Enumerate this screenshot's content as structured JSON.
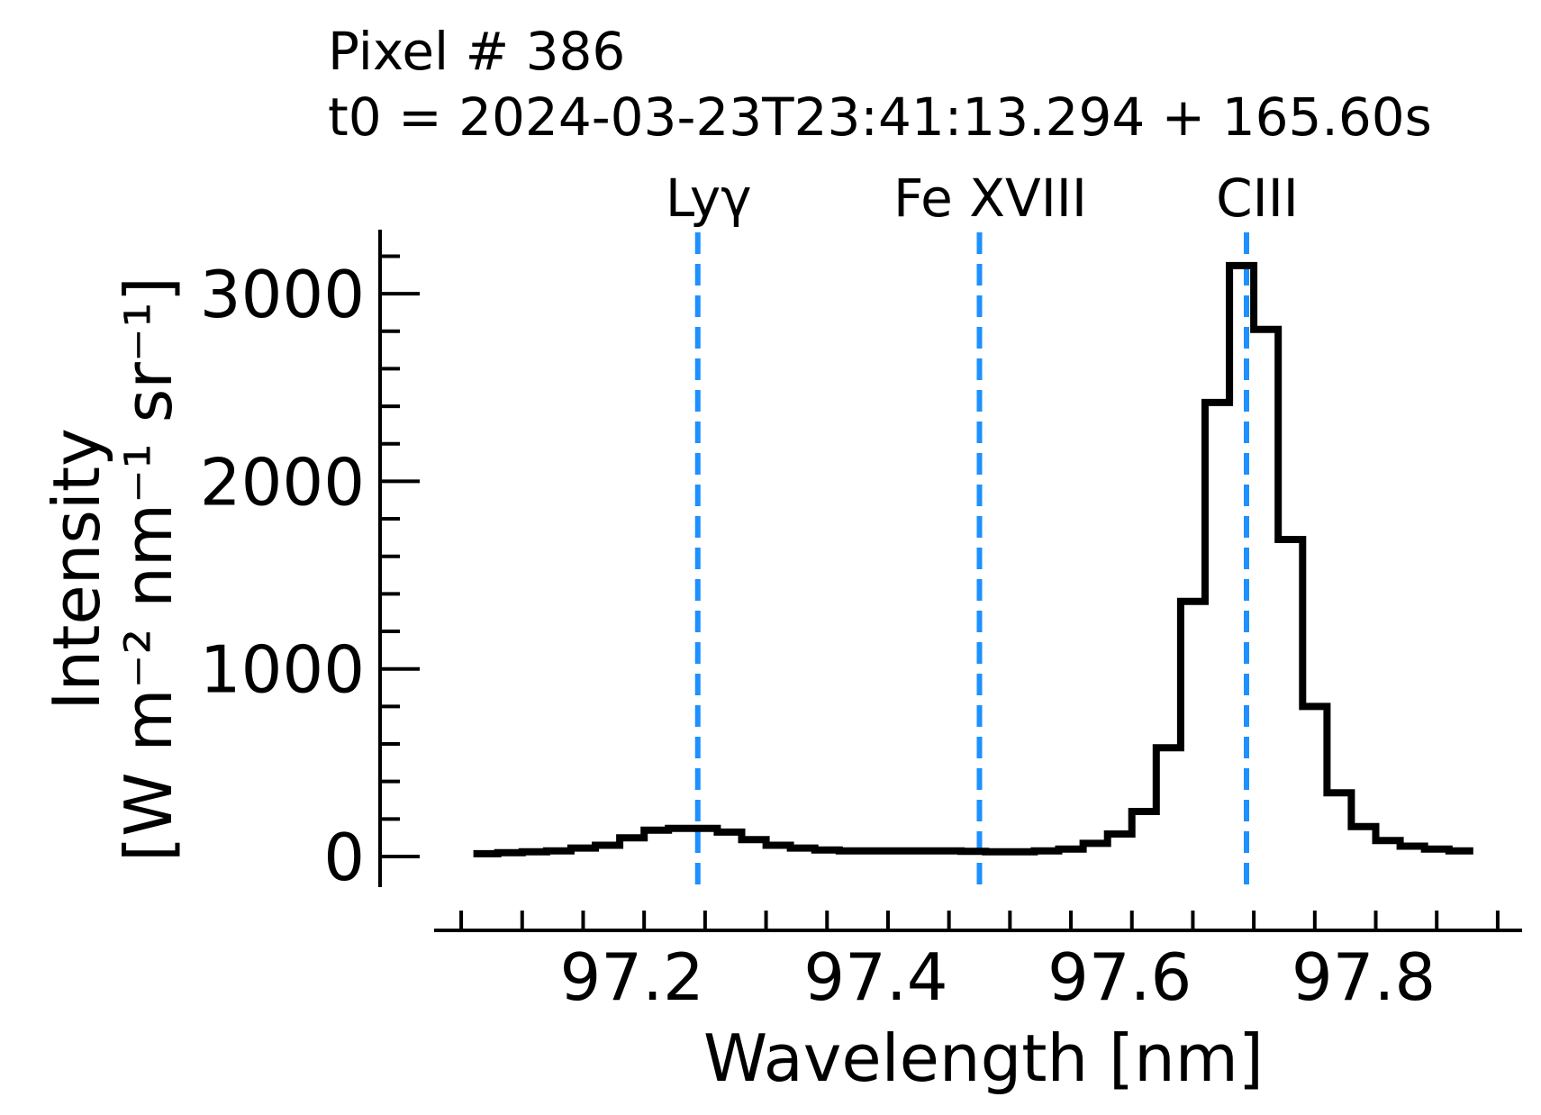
{
  "chart_data": {
    "type": "line",
    "title_lines": [
      "Pixel # 386",
      "t0 = 2024-03-23T23:41:13.294 + 165.60s"
    ],
    "xlabel": "Wavelength [nm]",
    "ylabel_lines": [
      "Intensity",
      "[W m⁻² nm⁻¹ sr⁻¹]"
    ],
    "xlim": [
      97.04,
      97.93
    ],
    "ylim": [
      -150,
      3340
    ],
    "x_ticks": [
      97.2,
      97.4,
      97.6,
      97.8
    ],
    "x_tick_labels": [
      "97.2",
      "97.4",
      "97.6",
      "97.8"
    ],
    "y_ticks": [
      0,
      1000,
      2000,
      3000
    ],
    "y_tick_labels": [
      "0",
      "1000",
      "2000",
      "3000"
    ],
    "grid": false,
    "step_series": {
      "color": "#000000",
      "x": [
        97.08,
        97.1,
        97.12,
        97.14,
        97.16,
        97.18,
        97.2,
        97.22,
        97.24,
        97.26,
        97.28,
        97.3,
        97.32,
        97.34,
        97.36,
        97.38,
        97.4,
        97.42,
        97.44,
        97.46,
        97.48,
        97.5,
        97.52,
        97.54,
        97.56,
        97.58,
        97.6,
        97.62,
        97.64,
        97.66,
        97.68,
        97.7,
        97.72,
        97.74,
        97.76,
        97.78,
        97.8,
        97.82,
        97.84,
        97.86,
        97.88
      ],
      "y": [
        15,
        20,
        25,
        30,
        45,
        60,
        100,
        140,
        150,
        150,
        130,
        90,
        60,
        45,
        35,
        30,
        30,
        30,
        30,
        30,
        28,
        25,
        25,
        30,
        40,
        70,
        120,
        240,
        580,
        1360,
        2420,
        3150,
        2810,
        1690,
        800,
        340,
        160,
        85,
        55,
        40,
        30
      ]
    },
    "reference_lines": [
      {
        "label": "Lyγ",
        "x": 97.254,
        "color": "#1e90ff"
      },
      {
        "label": "Fe XVIII",
        "x": 97.485,
        "color": "#1e90ff"
      },
      {
        "label": "CIII",
        "x": 97.704,
        "color": "#1e90ff"
      }
    ]
  }
}
